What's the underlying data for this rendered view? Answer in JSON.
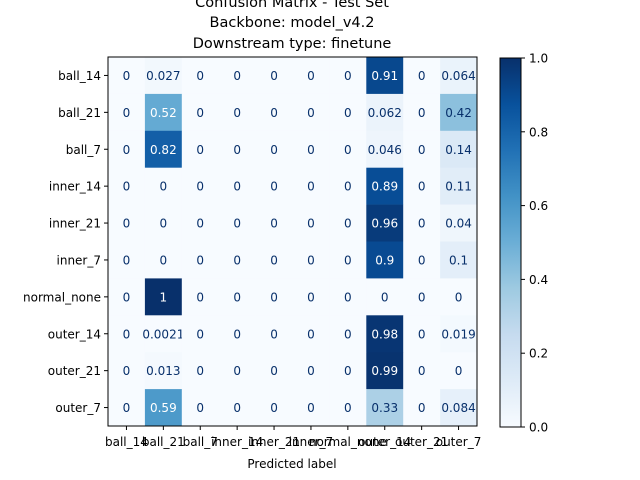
{
  "chart_data": {
    "type": "heatmap",
    "title_lines": [
      "Confusion Matrix - Test Set",
      "Backbone: model_v4.2",
      "Downstream type: finetune"
    ],
    "xlabel": "Predicted label",
    "ylabel": "",
    "x_labels": [
      "ball_14",
      "ball_21",
      "ball_7",
      "inner_14",
      "inner_21",
      "inner_7",
      "normal_none",
      "outer_14",
      "outer_21",
      "outer_7"
    ],
    "y_labels": [
      "ball_14",
      "ball_21",
      "ball_7",
      "inner_14",
      "inner_21",
      "inner_7",
      "normal_none",
      "outer_14",
      "outer_21",
      "outer_7"
    ],
    "values": [
      [
        0,
        0.027,
        0,
        0,
        0,
        0,
        0,
        0.91,
        0,
        0.064
      ],
      [
        0,
        0.52,
        0,
        0,
        0,
        0,
        0,
        0.062,
        0,
        0.42
      ],
      [
        0,
        0.82,
        0,
        0,
        0,
        0,
        0,
        0.046,
        0,
        0.14
      ],
      [
        0,
        0,
        0,
        0,
        0,
        0,
        0,
        0.89,
        0,
        0.11
      ],
      [
        0,
        0,
        0,
        0,
        0,
        0,
        0,
        0.96,
        0,
        0.04
      ],
      [
        0,
        0,
        0,
        0,
        0,
        0,
        0,
        0.9,
        0,
        0.1
      ],
      [
        0,
        1,
        0,
        0,
        0,
        0,
        0,
        0,
        0,
        0
      ],
      [
        0,
        0.0021,
        0,
        0,
        0,
        0,
        0,
        0.98,
        0,
        0.019
      ],
      [
        0,
        0.013,
        0,
        0,
        0,
        0,
        0,
        0.99,
        0,
        0
      ],
      [
        0,
        0.59,
        0,
        0,
        0,
        0,
        0,
        0.33,
        0,
        0.084
      ]
    ],
    "cell_labels": [
      [
        "0",
        "0.027",
        "0",
        "0",
        "0",
        "0",
        "0",
        "0.91",
        "0",
        "0.064"
      ],
      [
        "0",
        "0.52",
        "0",
        "0",
        "0",
        "0",
        "0",
        "0.062",
        "0",
        "0.42"
      ],
      [
        "0",
        "0.82",
        "0",
        "0",
        "0",
        "0",
        "0",
        "0.046",
        "0",
        "0.14"
      ],
      [
        "0",
        "0",
        "0",
        "0",
        "0",
        "0",
        "0",
        "0.89",
        "0",
        "0.11"
      ],
      [
        "0",
        "0",
        "0",
        "0",
        "0",
        "0",
        "0",
        "0.96",
        "0",
        "0.04"
      ],
      [
        "0",
        "0",
        "0",
        "0",
        "0",
        "0",
        "0",
        "0.9",
        "0",
        "0.1"
      ],
      [
        "0",
        "1",
        "0",
        "0",
        "0",
        "0",
        "0",
        "0",
        "0",
        "0"
      ],
      [
        "0",
        "0.0021",
        "0",
        "0",
        "0",
        "0",
        "0",
        "0.98",
        "0",
        "0.019"
      ],
      [
        "0",
        "0.013",
        "0",
        "0",
        "0",
        "0",
        "0",
        "0.99",
        "0",
        "0"
      ],
      [
        "0",
        "0.59",
        "0",
        "0",
        "0",
        "0",
        "0",
        "0.33",
        "0",
        "0.084"
      ]
    ],
    "colormap": "Blues",
    "colorbar": {
      "range": [
        0,
        1
      ],
      "ticks": [
        0.0,
        0.2,
        0.4,
        0.6,
        0.8,
        1.0
      ],
      "tick_labels": [
        "0.0",
        "0.2",
        "0.4",
        "0.6",
        "0.8",
        "1.0"
      ]
    }
  }
}
